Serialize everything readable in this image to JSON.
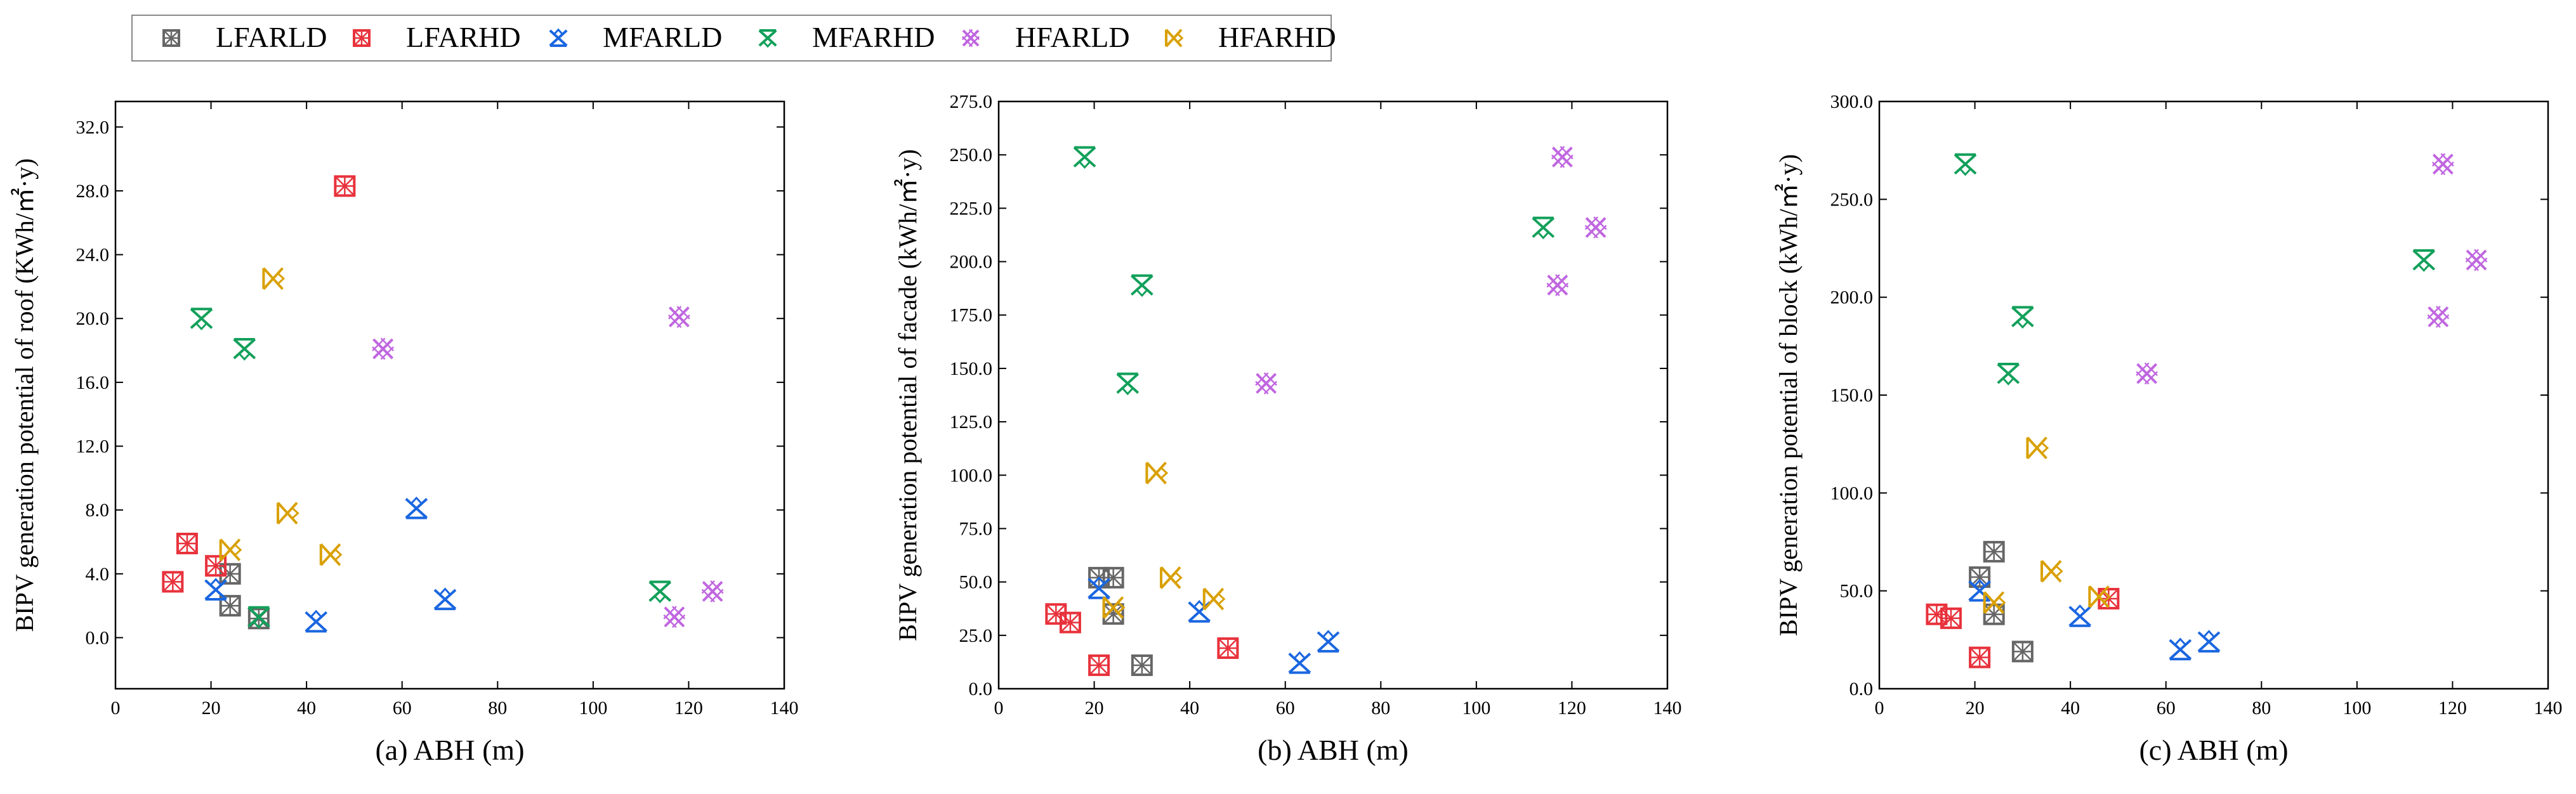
{
  "legend": {
    "entries": [
      {
        "name": "LFARLD",
        "color": "#666666",
        "marker": "square"
      },
      {
        "name": "LFARHD",
        "color": "#e8323c",
        "marker": "square"
      },
      {
        "name": "MFARLD",
        "color": "#1a66e0",
        "marker": "triangle"
      },
      {
        "name": "MFARHD",
        "color": "#12a05a",
        "marker": "triangle-down"
      },
      {
        "name": "HFARLD",
        "color": "#c066e0",
        "marker": "circle"
      },
      {
        "name": "HFARHD",
        "color": "#d9a000",
        "marker": "triangle-left"
      }
    ],
    "location": "top-left"
  },
  "chart_data": [
    {
      "type": "scatter",
      "title": "(a) ABH (m)",
      "xlabel": "(a) ABH (m)",
      "ylabel": "BIPV generation potential of roof (KWh/㎡·y)",
      "xlim": [
        0,
        140
      ],
      "ylim": [
        -3.2,
        33.6
      ],
      "xticks": [
        "0",
        "20",
        "40",
        "60",
        "80",
        "100",
        "120",
        "140"
      ],
      "yticks": [
        "0.0",
        "4.0",
        "8.0",
        "12.0",
        "16.0",
        "20.0",
        "24.0",
        "28.0",
        "32.0"
      ],
      "series": [
        {
          "name": "LFARLD",
          "points": [
            [
              24,
              4.0
            ],
            [
              24,
              2.0
            ],
            [
              30,
              1.2
            ]
          ]
        },
        {
          "name": "LFARHD",
          "points": [
            [
              12,
              3.5
            ],
            [
              15,
              5.9
            ],
            [
              21,
              4.5
            ],
            [
              48,
              28.3
            ]
          ]
        },
        {
          "name": "MFARLD",
          "points": [
            [
              21,
              3.0
            ],
            [
              42,
              1.0
            ],
            [
              63,
              8.1
            ],
            [
              69,
              2.4
            ]
          ]
        },
        {
          "name": "MFARHD",
          "points": [
            [
              18,
              20.0
            ],
            [
              27,
              18.1
            ],
            [
              30,
              1.3
            ],
            [
              114,
              2.9
            ]
          ]
        },
        {
          "name": "HFARLD",
          "points": [
            [
              56,
              18.1
            ],
            [
              117,
              1.3
            ],
            [
              118,
              20.1
            ],
            [
              125,
              2.9
            ]
          ]
        },
        {
          "name": "HFARHD",
          "points": [
            [
              24,
              5.5
            ],
            [
              33,
              22.5
            ],
            [
              36,
              7.8
            ],
            [
              45,
              5.2
            ]
          ]
        }
      ]
    },
    {
      "type": "scatter",
      "title": "(b) ABH (m)",
      "xlabel": "(b) ABH (m)",
      "ylabel": "BIPV generation potential of facade (kWh/㎡·y)",
      "xlim": [
        0,
        140
      ],
      "ylim": [
        0,
        275
      ],
      "xticks": [
        "0",
        "20",
        "40",
        "60",
        "80",
        "100",
        "120",
        "140"
      ],
      "yticks": [
        "0.0",
        "25.0",
        "50.0",
        "75.0",
        "100.0",
        "125.0",
        "150.0",
        "175.0",
        "200.0",
        "225.0",
        "250.0",
        "275.0"
      ],
      "series": [
        {
          "name": "LFARLD",
          "points": [
            [
              21,
              52
            ],
            [
              24,
              52
            ],
            [
              24,
              35
            ],
            [
              30,
              11
            ]
          ]
        },
        {
          "name": "LFARHD",
          "points": [
            [
              12,
              35
            ],
            [
              15,
              31
            ],
            [
              21,
              11
            ],
            [
              48,
              19
            ]
          ]
        },
        {
          "name": "MFARLD",
          "points": [
            [
              21,
              47
            ],
            [
              42,
              36
            ],
            [
              63,
              12
            ],
            [
              69,
              22
            ]
          ]
        },
        {
          "name": "MFARHD",
          "points": [
            [
              18,
              249
            ],
            [
              27,
              143
            ],
            [
              30,
              189
            ],
            [
              114,
              216
            ]
          ]
        },
        {
          "name": "HFARLD",
          "points": [
            [
              56,
              143
            ],
            [
              117,
              189
            ],
            [
              118,
              249
            ],
            [
              125,
              216
            ]
          ]
        },
        {
          "name": "HFARHD",
          "points": [
            [
              24,
              38
            ],
            [
              33,
              101
            ],
            [
              36,
              52
            ],
            [
              45,
              42
            ]
          ]
        }
      ]
    },
    {
      "type": "scatter",
      "title": "(c) ABH (m)",
      "xlabel": "(c) ABH (m)",
      "ylabel": "BIPV generation potential of block (kWh/㎡·y)",
      "xlim": [
        0,
        140
      ],
      "ylim": [
        0,
        300
      ],
      "xticks": [
        "0",
        "20",
        "40",
        "60",
        "80",
        "100",
        "120",
        "140"
      ],
      "yticks": [
        "0.0",
        "50.0",
        "100.0",
        "150.0",
        "200.0",
        "250.0",
        "300.0"
      ],
      "series": [
        {
          "name": "LFARLD",
          "points": [
            [
              21,
              57
            ],
            [
              24,
              70
            ],
            [
              24,
              38
            ],
            [
              30,
              19
            ]
          ]
        },
        {
          "name": "LFARHD",
          "points": [
            [
              12,
              38
            ],
            [
              15,
              36
            ],
            [
              21,
              16
            ],
            [
              48,
              46
            ]
          ]
        },
        {
          "name": "MFARLD",
          "points": [
            [
              21,
              50
            ],
            [
              42,
              37
            ],
            [
              63,
              20
            ],
            [
              69,
              24
            ]
          ]
        },
        {
          "name": "MFARHD",
          "points": [
            [
              18,
              268
            ],
            [
              27,
              161
            ],
            [
              30,
              190
            ],
            [
              114,
              219
            ]
          ]
        },
        {
          "name": "HFARLD",
          "points": [
            [
              56,
              161
            ],
            [
              117,
              190
            ],
            [
              118,
              268
            ],
            [
              125,
              219
            ]
          ]
        },
        {
          "name": "HFARHD",
          "points": [
            [
              24,
              44
            ],
            [
              33,
              123
            ],
            [
              36,
              60
            ],
            [
              46,
              47
            ]
          ]
        }
      ]
    }
  ]
}
